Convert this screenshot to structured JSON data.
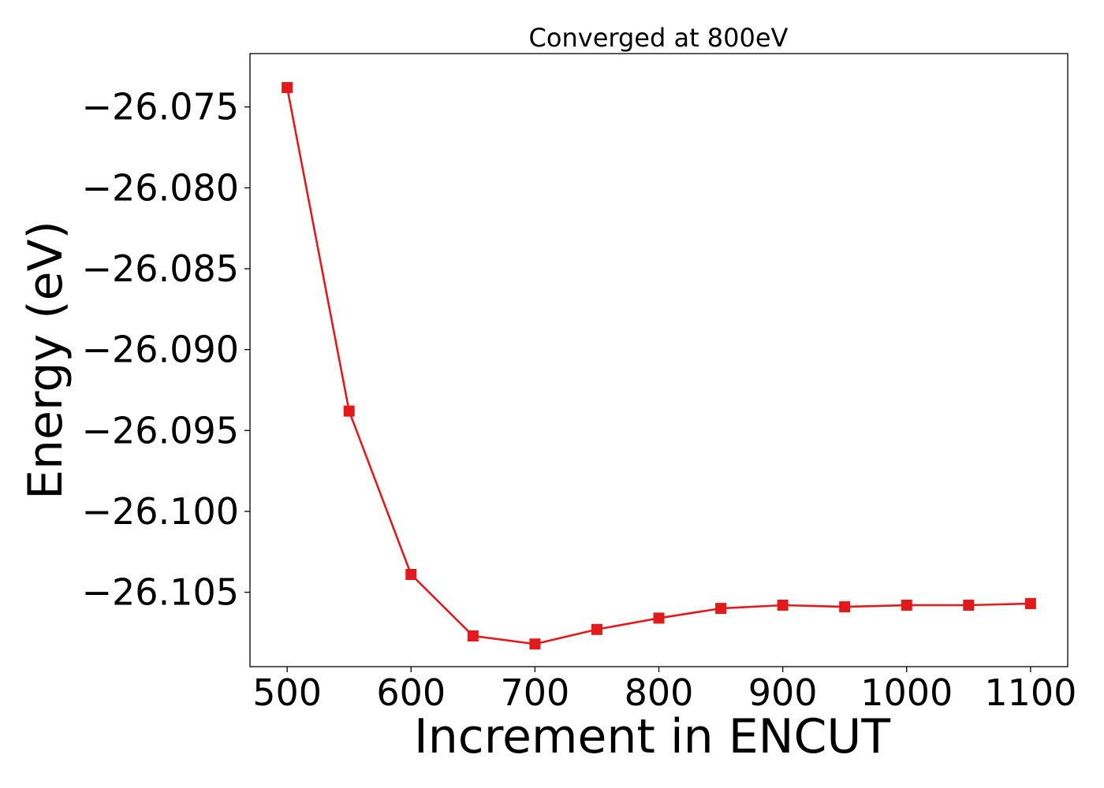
{
  "chart_data": {
    "type": "line",
    "title": "Converged at 800eV",
    "xlabel": "Increment in ENCUT",
    "ylabel": "Energy (eV)",
    "xlim": [
      470,
      1130
    ],
    "ylim": [
      -26.1096,
      -26.0717
    ],
    "xticks": [
      500,
      600,
      700,
      800,
      900,
      1000,
      1100
    ],
    "yticks": [
      -26.075,
      -26.08,
      -26.085,
      -26.09,
      -26.095,
      -26.1,
      -26.105
    ],
    "ytick_labels": [
      "−26.075",
      "−26.080",
      "−26.085",
      "−26.090",
      "−26.095",
      "−26.100",
      "−26.105"
    ],
    "grid": false,
    "legend": "none",
    "series": [
      {
        "color": "#e31a1c",
        "marker": "square",
        "x": [
          500,
          550,
          600,
          650,
          700,
          750,
          800,
          850,
          900,
          950,
          1000,
          1050,
          1100
        ],
        "y": [
          -26.0738,
          -26.0938,
          -26.1039,
          -26.1077,
          -26.1082,
          -26.1073,
          -26.1066,
          -26.106,
          -26.1058,
          -26.1059,
          -26.1058,
          -26.1058,
          -26.1057
        ]
      }
    ]
  }
}
